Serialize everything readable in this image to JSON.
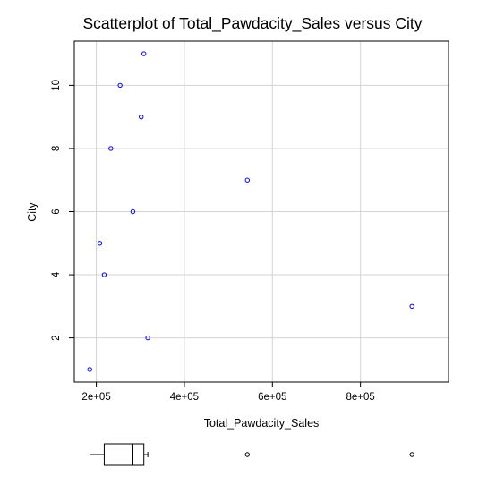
{
  "chart_data": {
    "type": "scatter",
    "title": "Scatterplot of Total_Pawdacity_Sales versus City",
    "xlabel": "Total_Pawdacity_Sales",
    "ylabel": "City",
    "xlim": [
      150000,
      1000000
    ],
    "ylim": [
      0.6,
      11.4
    ],
    "x_ticks": [
      200000,
      400000,
      600000,
      800000
    ],
    "x_tick_labels": [
      "2e+05",
      "4e+05",
      "6e+05",
      "8e+05"
    ],
    "y_ticks": [
      2,
      4,
      6,
      8,
      10
    ],
    "y_tick_labels": [
      "2",
      "4",
      "6",
      "8",
      "10"
    ],
    "grid": true,
    "point_color": "#0000ff",
    "points": [
      {
        "x": 185000,
        "y": 1
      },
      {
        "x": 317000,
        "y": 2
      },
      {
        "x": 917000,
        "y": 3
      },
      {
        "x": 218000,
        "y": 4
      },
      {
        "x": 208000,
        "y": 5
      },
      {
        "x": 283000,
        "y": 6
      },
      {
        "x": 543000,
        "y": 7
      },
      {
        "x": 233000,
        "y": 8
      },
      {
        "x": 302000,
        "y": 9
      },
      {
        "x": 254000,
        "y": 10
      },
      {
        "x": 308000,
        "y": 11
      }
    ],
    "boxplot": {
      "min": 185000,
      "q1": 218000,
      "median": 283000,
      "q3": 308000,
      "whisker_high": 317000,
      "outliers": [
        543000,
        917000
      ]
    }
  }
}
